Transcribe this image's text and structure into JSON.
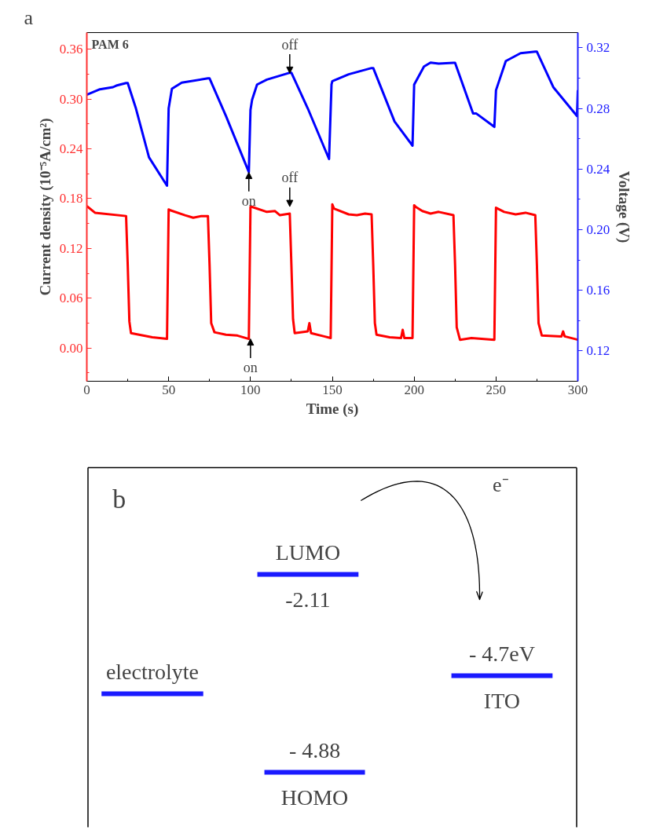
{
  "chart_data": [
    {
      "type": "line",
      "title": "a",
      "xlabel": "Time (s)",
      "ylabel": "Current density (10⁻⁵A/cm²)",
      "y2label": "Voltage (V)",
      "xlim": [
        0,
        300
      ],
      "xticks": [
        0,
        50,
        100,
        150,
        200,
        250,
        300
      ],
      "ylim": [
        -0.04,
        0.38
      ],
      "yticks": [
        {
          "value": 0,
          "label": "0.00"
        },
        {
          "value": 0.06,
          "label": "0.06"
        },
        {
          "value": 0.12,
          "label": "0.12"
        },
        {
          "value": 0.18,
          "label": "0.18"
        },
        {
          "value": 0.24,
          "label": "0.24"
        },
        {
          "value": 0.3,
          "label": "0.30"
        },
        {
          "value": 0.36,
          "label": "0.36"
        }
      ],
      "y2lim": [
        0.1,
        0.33
      ],
      "y2ticks": [
        {
          "value": 0.12,
          "label": "0.12"
        },
        {
          "value": 0.16,
          "label": "0.16"
        },
        {
          "value": 0.2,
          "label": "0.20"
        },
        {
          "value": 0.24,
          "label": "0.24"
        },
        {
          "value": 0.28,
          "label": "0.28"
        },
        {
          "value": 0.32,
          "label": "0.32"
        }
      ],
      "grid": false,
      "marker": "none",
      "line_style": "solid",
      "series": [
        {
          "color": "#ff0000",
          "x": [
            0,
            5,
            24,
            25,
            26,
            27,
            40,
            49,
            50,
            51,
            60,
            65,
            70,
            74,
            75,
            76,
            78,
            85,
            92,
            99,
            100,
            101,
            110,
            115,
            118,
            124,
            125,
            126,
            127,
            135,
            136,
            137,
            145,
            149,
            150,
            151,
            160,
            165,
            170,
            174,
            175,
            176,
            177,
            185,
            192,
            193,
            194,
            199,
            200,
            201,
            205,
            210,
            215,
            224,
            225,
            226,
            228,
            235,
            249,
            250,
            251,
            255,
            262,
            268,
            274,
            275,
            276,
            278,
            290,
            291,
            292,
            300
          ],
          "values": [
            0.171,
            0.163,
            0.159,
            0.1,
            0.032,
            0.018,
            0.013,
            0.011,
            0.167,
            0.166,
            0.16,
            0.157,
            0.159,
            0.159,
            0.1,
            0.03,
            0.019,
            0.016,
            0.015,
            0.011,
            0.17,
            0.17,
            0.164,
            0.165,
            0.16,
            0.162,
            0.1,
            0.035,
            0.018,
            0.02,
            0.03,
            0.018,
            0.014,
            0.012,
            0.173,
            0.168,
            0.161,
            0.16,
            0.162,
            0.161,
            0.1,
            0.03,
            0.016,
            0.013,
            0.012,
            0.022,
            0.012,
            0.012,
            0.172,
            0.17,
            0.165,
            0.162,
            0.164,
            0.16,
            0.1,
            0.025,
            0.01,
            0.012,
            0.01,
            0.169,
            0.168,
            0.164,
            0.161,
            0.163,
            0.16,
            0.1,
            0.03,
            0.015,
            0.014,
            0.02,
            0.014,
            0.01
          ]
        },
        {
          "color": "#0000ff",
          "axis": "y2",
          "x": [
            0,
            8,
            16,
            18,
            24,
            25,
            30,
            38,
            49,
            50,
            52,
            58,
            74,
            75,
            85,
            99,
            100,
            101,
            104,
            110,
            124,
            125,
            135,
            148,
            149.5,
            150,
            160,
            174,
            175,
            188,
            199,
            200,
            206,
            210,
            215,
            224,
            225,
            236,
            238,
            249,
            250,
            256,
            265,
            274,
            275,
            285,
            299.5,
            300
          ],
          "values": [
            0.289,
            0.2926,
            0.294,
            0.295,
            0.2967,
            0.2967,
            0.28,
            0.2477,
            0.229,
            0.28,
            0.293,
            0.297,
            0.2998,
            0.2998,
            0.275,
            0.238,
            0.279,
            0.2857,
            0.2957,
            0.299,
            0.3035,
            0.3035,
            0.28,
            0.2466,
            0.2957,
            0.298,
            0.3025,
            0.3066,
            0.3066,
            0.2714,
            0.2554,
            0.2957,
            0.3076,
            0.3102,
            0.3095,
            0.31,
            0.31,
            0.2766,
            0.2766,
            0.2678,
            0.292,
            0.3112,
            0.3164,
            0.3174,
            0.3174,
            0.294,
            0.275,
            0.292
          ]
        }
      ],
      "annotations": [
        "PAM 6",
        {
          "text": "off",
          "x": 124,
          "y": 0.331
        },
        {
          "text": "on",
          "x": 99,
          "y": 0.2117
        },
        {
          "text": "off",
          "x": 124,
          "y": 0.162
        },
        {
          "text": "on",
          "x": 100,
          "y": 0.011
        }
      ]
    },
    {
      "type": "other",
      "title": "b",
      "categories": [
        "electrolyte",
        "LUMO",
        "HOMO",
        "ITO"
      ],
      "value_labels": [
        null,
        "-2.11",
        "- 4.88",
        "- 4.7eV"
      ],
      "annotations": [
        "e⁻"
      ]
    }
  ]
}
